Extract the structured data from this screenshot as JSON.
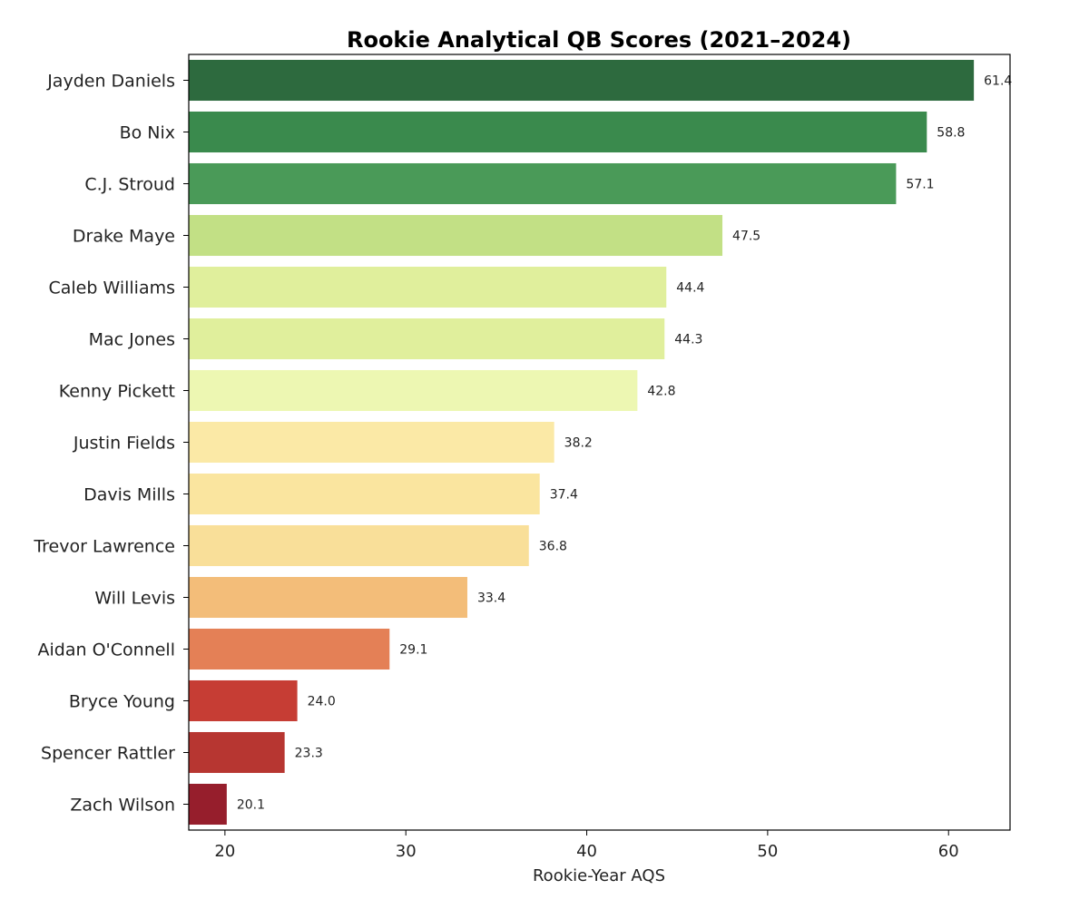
{
  "chart_data": {
    "type": "bar",
    "orientation": "horizontal",
    "title": "Rookie Analytical QB Scores (2021–2024)",
    "xlabel": "Rookie-Year AQS",
    "ylabel": "",
    "xlim": [
      18,
      63.4
    ],
    "xticks": [
      20,
      30,
      40,
      50,
      60
    ],
    "grid": false,
    "categories": [
      "Jayden Daniels",
      "Bo Nix",
      "C.J. Stroud",
      "Drake Maye",
      "Caleb Williams",
      "Mac Jones",
      "Kenny Pickett",
      "Justin Fields",
      "Davis Mills",
      "Trevor Lawrence",
      "Will Levis",
      "Aidan O'Connell",
      "Bryce Young",
      "Spencer Rattler",
      "Zach Wilson"
    ],
    "values": [
      61.4,
      58.8,
      57.1,
      47.5,
      44.4,
      44.3,
      42.8,
      38.2,
      37.4,
      36.8,
      33.4,
      29.1,
      24.0,
      23.3,
      20.1
    ],
    "value_labels": [
      "61.4",
      "58.8",
      "57.1",
      "47.5",
      "44.4",
      "44.3",
      "42.8",
      "38.2",
      "37.4",
      "36.8",
      "33.4",
      "29.1",
      "24.0",
      "23.3",
      "20.1"
    ],
    "colors": [
      "#2d6a3e",
      "#3a8a4d",
      "#4a9a58",
      "#c2e085",
      "#e0ef9c",
      "#e0ef9c",
      "#edf7b2",
      "#fbe9a6",
      "#fae59f",
      "#f9df99",
      "#f3bd79",
      "#e48056",
      "#c63d34",
      "#b73631",
      "#961e2c"
    ]
  }
}
